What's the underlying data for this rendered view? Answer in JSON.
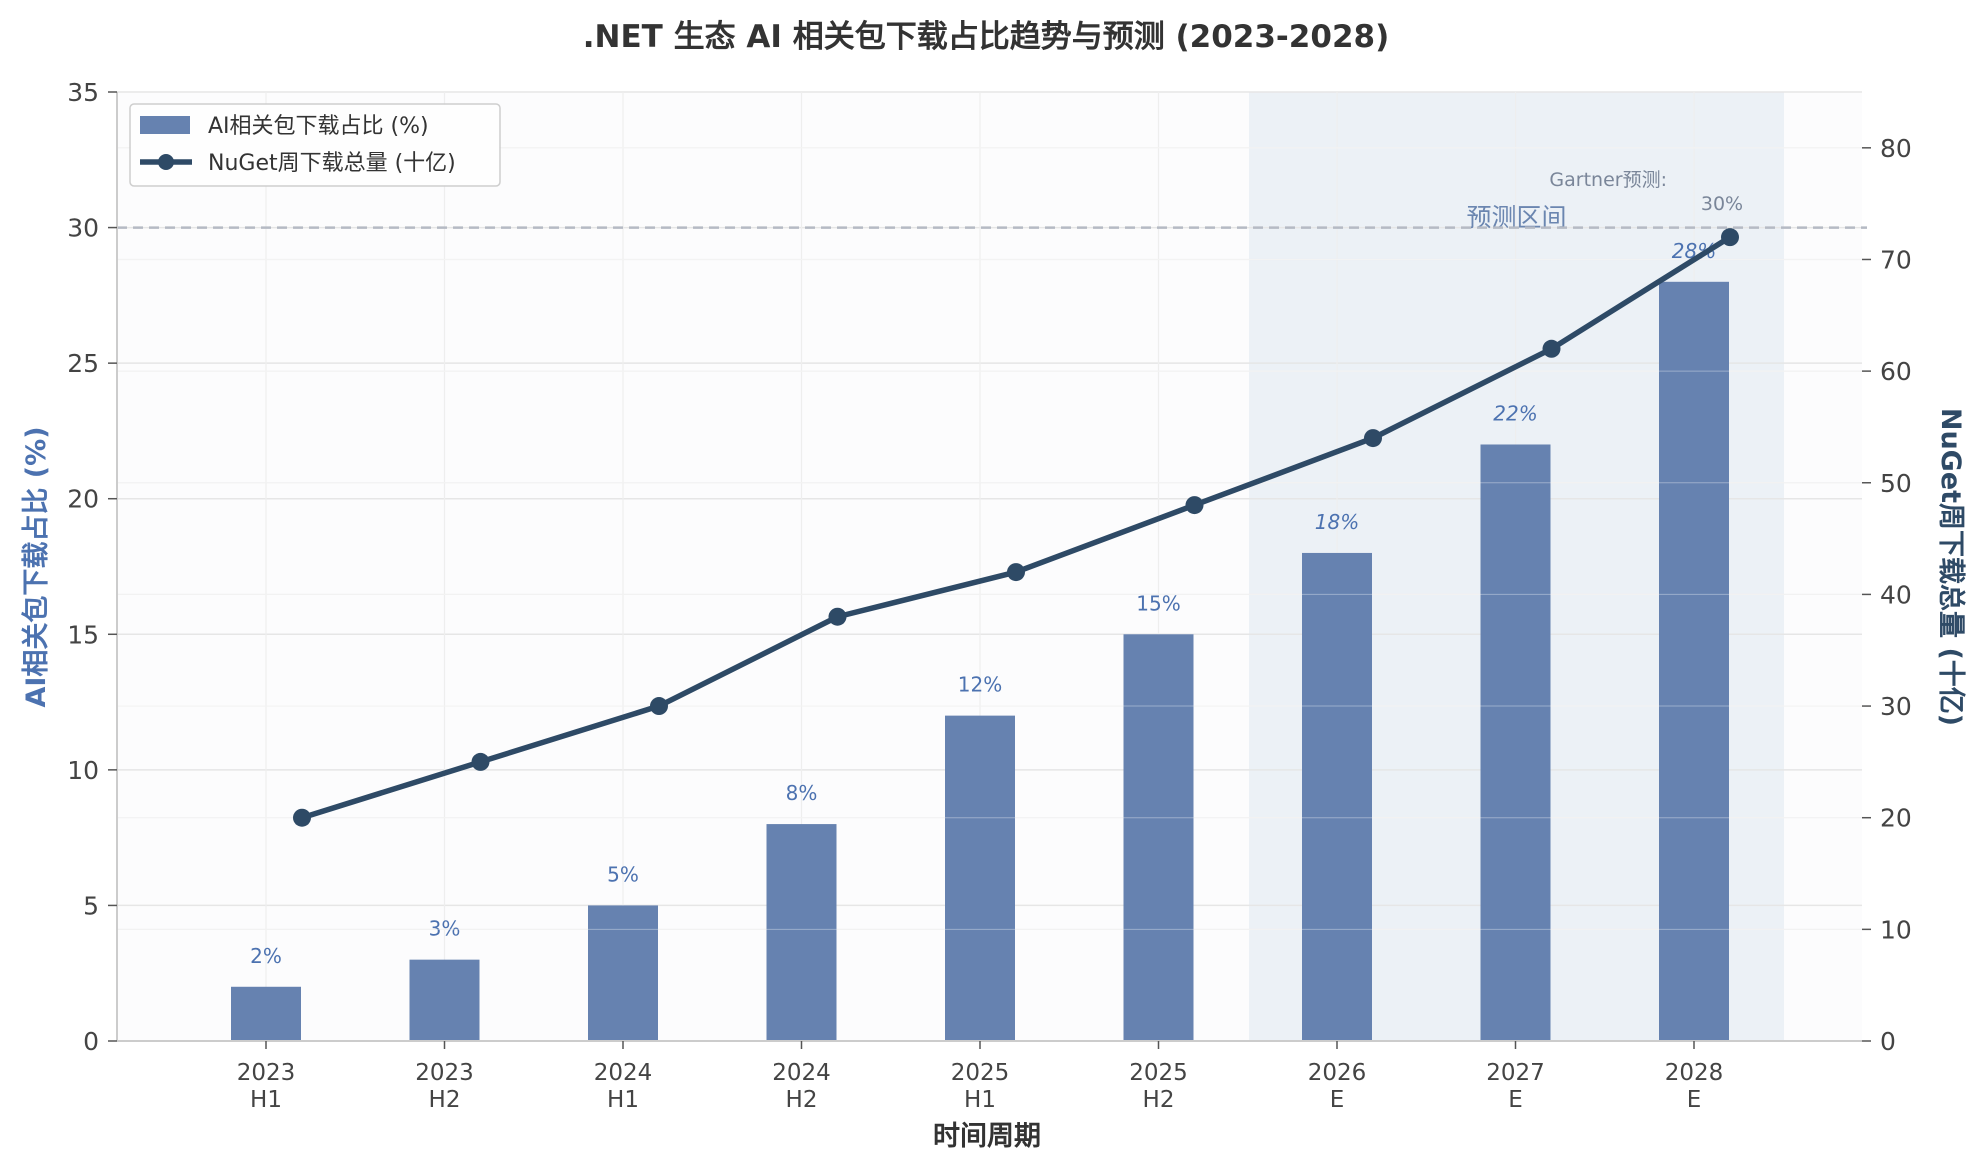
{
  "chart_data": {
    "type": "bar",
    "title": ".NET 生态 AI 相关包下载占比趋势与预测 (2023-2028)",
    "xlabel": "时间周期",
    "ylabel_left": "AI相关包下载占比 (%)",
    "ylabel_right": "NuGet周下载总量 (十亿)",
    "categories": [
      {
        "year": "2023",
        "sub": "H1"
      },
      {
        "year": "2023",
        "sub": "H2"
      },
      {
        "year": "2024",
        "sub": "H1"
      },
      {
        "year": "2024",
        "sub": "H2"
      },
      {
        "year": "2025",
        "sub": "H1"
      },
      {
        "year": "2025",
        "sub": "H2"
      },
      {
        "year": "2026",
        "sub": "E"
      },
      {
        "year": "2027",
        "sub": "E"
      },
      {
        "year": "2028",
        "sub": "E"
      }
    ],
    "series": [
      {
        "name": "AI相关包下载占比 (%)",
        "type": "bar",
        "axis": "left",
        "values": [
          2,
          3,
          5,
          8,
          12,
          15,
          18,
          22,
          28
        ],
        "labels": [
          "2%",
          "3%",
          "5%",
          "8%",
          "12%",
          "15%",
          "18%",
          "22%",
          "28%"
        ],
        "forecast": [
          false,
          false,
          false,
          false,
          false,
          false,
          true,
          true,
          true
        ],
        "color": "#6682b0"
      },
      {
        "name": "NuGet周下载总量 (十亿)",
        "type": "line",
        "axis": "right",
        "values": [
          20,
          25,
          30,
          38,
          42,
          48,
          54,
          62,
          72
        ],
        "color": "#2e4a66"
      }
    ],
    "ylim_left": [
      0,
      35
    ],
    "yticks_left": [
      0,
      5,
      10,
      15,
      20,
      25,
      30,
      35
    ],
    "ylim_right": [
      0,
      85
    ],
    "yticks_right": [
      0,
      10,
      20,
      30,
      40,
      50,
      60,
      70,
      80
    ],
    "reference_line": {
      "axis": "left",
      "value": 30
    },
    "forecast_region": {
      "label": "预测区间",
      "start_index": 6,
      "end_index": 8
    },
    "annotation": {
      "line1": "Gartner预测:",
      "line2": "30%"
    },
    "legend_position": "top-left",
    "grid": true
  }
}
